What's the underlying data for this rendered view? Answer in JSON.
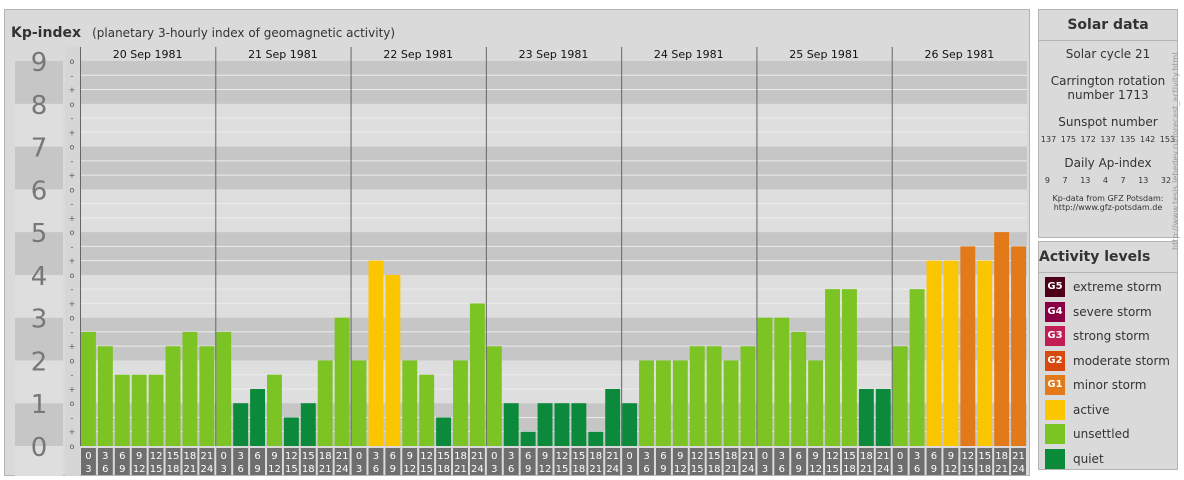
{
  "header": {
    "title": "Kp-index",
    "subtitle": "(planetary 3-hourly index of geomagnetic activity)"
  },
  "chart_data": {
    "type": "bar",
    "title": "Kp-index",
    "ylim": [
      0,
      9
    ],
    "y_ticks": [
      "0",
      "1",
      "2",
      "3",
      "4",
      "5",
      "6",
      "7",
      "8",
      "9"
    ],
    "minor_tick_marks": [
      "-",
      "o",
      "+"
    ],
    "days": [
      "20 Sep 1981",
      "21 Sep 1981",
      "22 Sep 1981",
      "23 Sep 1981",
      "24 Sep 1981",
      "25 Sep 1981",
      "26 Sep 1981"
    ],
    "hour_starts": [
      "0",
      "3",
      "6",
      "9",
      "12",
      "15",
      "18",
      "21"
    ],
    "hour_ends": [
      "3",
      "6",
      "9",
      "12",
      "15",
      "18",
      "21",
      "24"
    ],
    "values": [
      2.667,
      2.333,
      1.667,
      1.667,
      1.667,
      2.333,
      2.667,
      2.333,
      2.667,
      1.0,
      1.333,
      1.667,
      0.667,
      1.0,
      2.0,
      3.0,
      2.0,
      4.333,
      4.0,
      2.0,
      1.667,
      0.667,
      2.0,
      3.333,
      2.333,
      1.0,
      0.333,
      1.0,
      1.0,
      1.0,
      0.333,
      1.333,
      1.0,
      2.0,
      2.0,
      2.0,
      2.333,
      2.333,
      2.0,
      2.333,
      3.0,
      3.0,
      2.667,
      2.0,
      3.667,
      3.667,
      1.333,
      1.333,
      2.333,
      3.667,
      4.333,
      4.333,
      4.667,
      4.333,
      5.0,
      4.667
    ],
    "colors": {
      "quiet": "#0a8a3a",
      "unsettled": "#7cc423",
      "active": "#fbc500",
      "G1": "#e37a1a",
      "G2": "#d9480f",
      "G3": "#c21e56",
      "G4": "#8b0044",
      "G5": "#4d0016"
    }
  },
  "solar": {
    "title": "Solar data",
    "cycle": "Solar cycle 21",
    "carrington_line1": "Carrington rotation",
    "carrington_line2": "number 1713",
    "sunspot_label": "Sunspot number",
    "sunspot_values": "137 175 172 137 135 142 153",
    "ap_label": "Daily Ap-index",
    "ap_values": "9 7 13 4 7 13 32",
    "source_line1": "Kp-data from GFZ Potsdam:",
    "source_line2": "http://www.gfz-potsdam.de"
  },
  "activity": {
    "title": "Activity levels",
    "levels": [
      {
        "code": "G5",
        "label": "extreme storm",
        "color": "#4d0016"
      },
      {
        "code": "G4",
        "label": "severe storm",
        "color": "#8b0044"
      },
      {
        "code": "G3",
        "label": "strong storm",
        "color": "#c21e56"
      },
      {
        "code": "G2",
        "label": "moderate storm",
        "color": "#d9480f"
      },
      {
        "code": "G1",
        "label": "minor storm",
        "color": "#e37a1a"
      },
      {
        "code": "",
        "label": "active",
        "color": "#fbc500"
      },
      {
        "code": "",
        "label": "unsettled",
        "color": "#7cc423"
      },
      {
        "code": "",
        "label": "quiet",
        "color": "#0a8a3a"
      }
    ]
  },
  "credit": "http://www.tesis.lebedev.ru/forecast_activity.html"
}
